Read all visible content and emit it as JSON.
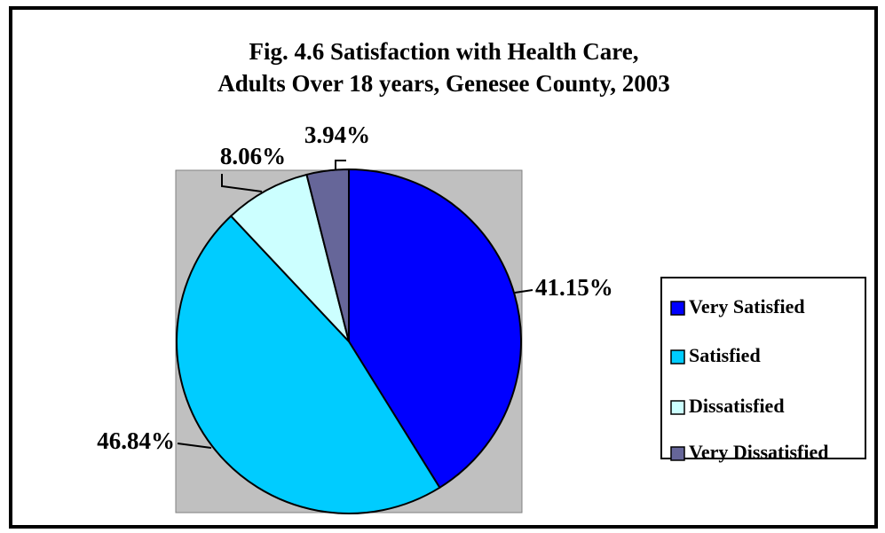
{
  "chart_data": {
    "type": "pie",
    "title": [
      "Fig. 4.6 Satisfaction with Health Care,",
      "Adults Over 18 years, Genesee County, 2003"
    ],
    "categories": [
      "Very Satisfied",
      "Satisfied",
      "Dissatisfied",
      "Very Dissatisfied"
    ],
    "values": [
      41.15,
      46.84,
      8.06,
      3.94
    ],
    "value_labels": [
      "41.15%",
      "46.84%",
      "8.06%",
      "3.94%"
    ],
    "colors": [
      "#0000ff",
      "#00ccff",
      "#ccffff",
      "#666699"
    ],
    "legend": "right"
  }
}
